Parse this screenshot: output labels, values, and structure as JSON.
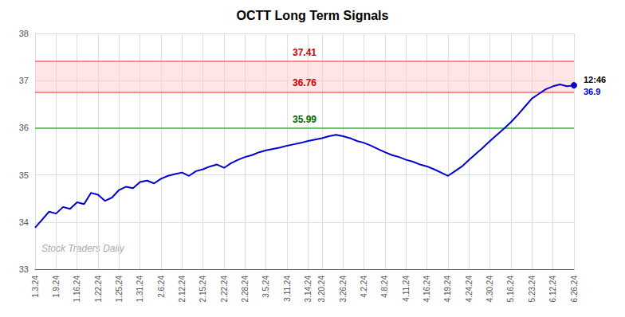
{
  "chart_data": {
    "type": "line",
    "title": "OCTT Long Term Signals",
    "categories": [
      "1.3.24",
      null,
      null,
      "1.9.24",
      null,
      null,
      "1.16.24",
      null,
      null,
      "1.22.24",
      null,
      null,
      "1.25.24",
      null,
      null,
      "1.31.24",
      null,
      null,
      "2.6.24",
      null,
      null,
      "2.12.24",
      null,
      null,
      "2.15.24",
      null,
      null,
      "2.22.24",
      null,
      null,
      "2.28.24",
      null,
      null,
      "3.5.24",
      null,
      null,
      "3.11.24",
      null,
      null,
      "3.14.24",
      null,
      "3.20.24",
      null,
      null,
      "3.26.24",
      null,
      null,
      "4.2.24",
      null,
      null,
      "4.8.24",
      null,
      null,
      "4.11.24",
      null,
      null,
      "4.16.24",
      null,
      null,
      "4.19.24",
      null,
      null,
      "4.24.24",
      null,
      null,
      "4.30.24",
      null,
      null,
      "5.16.24",
      null,
      null,
      "5.23.24",
      null,
      null,
      "6.12.24",
      null,
      null,
      "6.26.24"
    ],
    "values": [
      33.88,
      34.05,
      34.22,
      34.18,
      34.32,
      34.28,
      34.42,
      34.38,
      34.62,
      34.58,
      34.45,
      34.52,
      34.68,
      34.75,
      34.72,
      34.85,
      34.88,
      34.82,
      34.92,
      34.98,
      35.02,
      35.05,
      34.98,
      35.08,
      35.12,
      35.18,
      35.22,
      35.15,
      35.25,
      35.32,
      35.38,
      35.42,
      35.48,
      35.52,
      35.55,
      35.58,
      35.62,
      35.65,
      35.68,
      35.72,
      35.75,
      35.78,
      35.82,
      35.85,
      35.82,
      35.78,
      35.72,
      35.68,
      35.62,
      35.55,
      35.48,
      35.42,
      35.38,
      35.32,
      35.28,
      35.22,
      35.18,
      35.12,
      35.05,
      34.98,
      35.08,
      35.18,
      35.32,
      35.45,
      35.58,
      35.72,
      35.85,
      35.98,
      36.12,
      36.28,
      36.45,
      36.62,
      36.72,
      36.82,
      36.88,
      36.92,
      36.88,
      36.9
    ],
    "color": "#0000cc",
    "ylim": [
      33,
      38
    ],
    "yticks": [
      33,
      34,
      35,
      36,
      37,
      38
    ],
    "grid": true,
    "hlines": [
      {
        "y": 37.41,
        "color": "#ff6666",
        "label": "37.41",
        "label_color": "#cc0000"
      },
      {
        "y": 36.76,
        "color": "#ff6666",
        "label": "36.76",
        "label_color": "#cc0000"
      },
      {
        "y": 35.99,
        "color": "#33bb33",
        "label": "35.99",
        "label_color": "#006600"
      }
    ],
    "band": {
      "from": 36.76,
      "to": 37.41,
      "color": "#ffcccc"
    },
    "last_point": {
      "marker": "circle",
      "labels": [
        {
          "text": "12:46",
          "color": "#000000"
        },
        {
          "text": "36.9",
          "color": "#0000cc"
        }
      ]
    },
    "watermark": "Stock Traders Daily"
  }
}
